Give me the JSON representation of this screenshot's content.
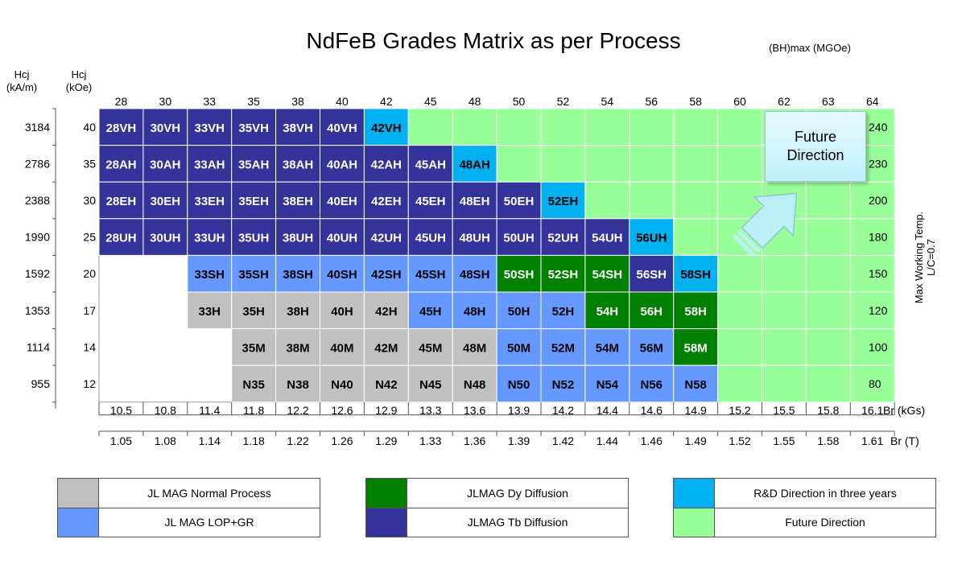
{
  "colors": {
    "normal": "#c0c0c0",
    "lop": "#6699ff",
    "dy": "#008000",
    "tb": "#333399",
    "rd": "#00b0f0",
    "future": "#99ff99",
    "empty": "#ffffff"
  },
  "chart_data": {
    "type": "table",
    "title": "NdFeB Grades Matrix as per Process",
    "top_axis_label": "(BH)max (MGOe)",
    "left_axis_labels": {
      "kam": "Hcj\n(kA/m)",
      "koe": "Hcj\n(kOe)"
    },
    "right_axis_label": [
      "Max Working Temp.",
      "L/C=0.7"
    ],
    "br_kgs_label": "Br (kGs)",
    "br_t_label": "Br (T)",
    "bhmax": [
      "28",
      "30",
      "33",
      "35",
      "38",
      "40",
      "42",
      "45",
      "48",
      "50",
      "52",
      "54",
      "56",
      "58",
      "60",
      "62",
      "63",
      "64"
    ],
    "br_kgs": [
      "10.5",
      "10.8",
      "11.4",
      "11.8",
      "12.2",
      "12.6",
      "12.9",
      "13.3",
      "13.6",
      "13.9",
      "14.2",
      "14.4",
      "14.6",
      "14.9",
      "15.2",
      "15.5",
      "15.8",
      "16.1"
    ],
    "br_t": [
      "1.05",
      "1.08",
      "1.14",
      "1.18",
      "1.22",
      "1.26",
      "1.29",
      "1.33",
      "1.36",
      "1.39",
      "1.42",
      "1.44",
      "1.46",
      "1.49",
      "1.52",
      "1.55",
      "1.58",
      "1.61"
    ],
    "hcj_kam": [
      "3184",
      "2786",
      "2388",
      "1990",
      "1592",
      "1353",
      "1114",
      "955"
    ],
    "hcj_koe": [
      "40",
      "35",
      "30",
      "25",
      "20",
      "17",
      "14",
      "12"
    ],
    "max_temp": [
      "240",
      "230",
      "200",
      "180",
      "150",
      "120",
      "100",
      "80"
    ],
    "rows": [
      {
        "suffix": "VH",
        "cats": "TTTTTTRFFFFFFFFFFF"
      },
      {
        "suffix": "AH",
        "cats": "TTTTTTTTRFFFFFFFFF"
      },
      {
        "suffix": "EH",
        "cats": "TTTTTTTTTTRFFFFFFF"
      },
      {
        "suffix": "UH",
        "cats": "TTTTTTTTTTTTRFFFFF"
      },
      {
        "suffix": "SH",
        "cats": "EEPPPPPPPDDDTRFFFF"
      },
      {
        "suffix": "H",
        "cats": "EENNNNNPPPPDDDFFFF"
      },
      {
        "suffix": "M",
        "cats": "EEENNNNNNPPPPDFFFF"
      },
      {
        "suffix": "",
        "prefix": "N",
        "cats": "EEENNNNNNPPPPPFFFF"
      }
    ],
    "legend": [
      {
        "cat": "N",
        "label": "JL MAG Normal Process"
      },
      {
        "cat": "P",
        "label": "JL MAG LOP+GR"
      },
      {
        "cat": "D",
        "label": "JLMAG Dy Diffusion"
      },
      {
        "cat": "T",
        "label": "JLMAG Tb Diffusion"
      },
      {
        "cat": "R",
        "label": "R&D Direction in three years"
      },
      {
        "cat": "F",
        "label": "Future Direction"
      }
    ],
    "future_callout": [
      "Future",
      "Direction"
    ]
  },
  "legend_labels": {
    "normal": "JL MAG Normal Process",
    "lop": "JL MAG LOP+GR",
    "dy": "JLMAG Dy Diffusion",
    "tb": "JLMAG Tb Diffusion",
    "rd": "R&D Direction in three years",
    "future": "Future Direction"
  }
}
